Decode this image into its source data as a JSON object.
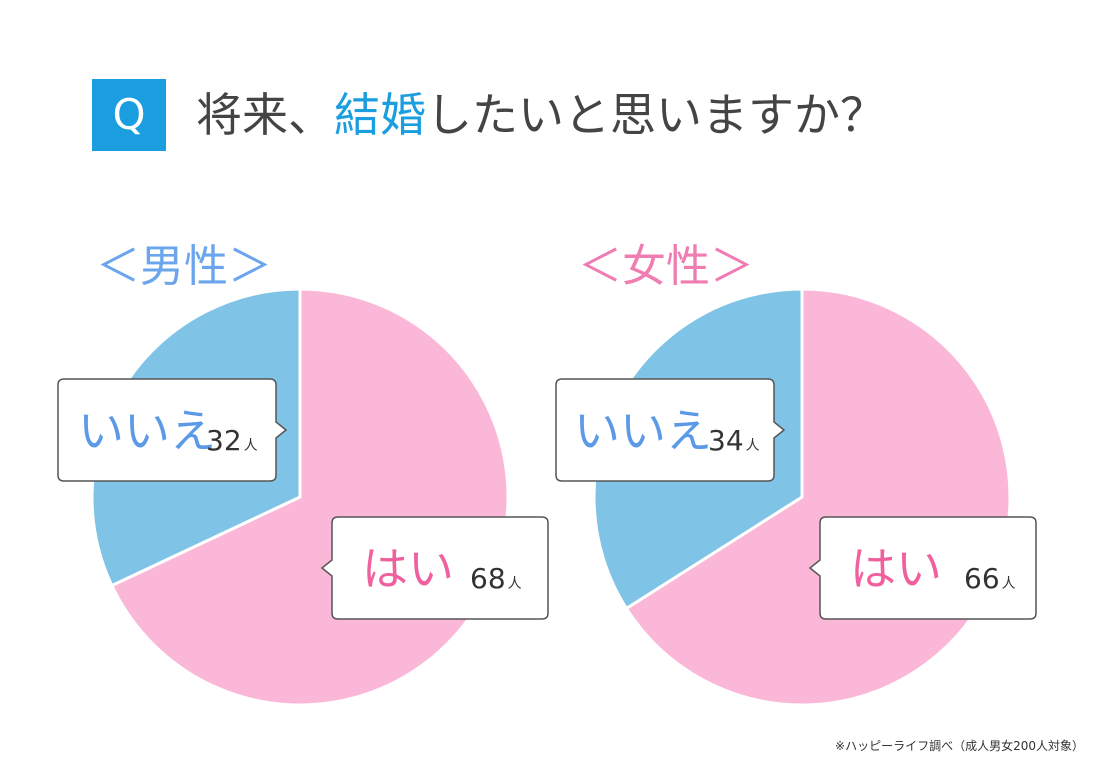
{
  "question": {
    "badge": "Q",
    "title_pre": "将来、",
    "title_highlight": "結婚",
    "title_post": "したいと思いますか？"
  },
  "colors": {
    "accent": "#1a9ee0",
    "yes": "#fbb7d7",
    "no": "#7fc4e6",
    "male_heading": "#6aa5ee",
    "female_heading": "#f07db1",
    "yes_text": "#f0609e",
    "no_text": "#5c9ae8",
    "bubble_border": "#555555"
  },
  "chart_data": [
    {
      "type": "pie",
      "title": "＜男性＞",
      "slices": [
        {
          "label": "はい",
          "value": 68,
          "unit": "人",
          "color": "#fbb7d7"
        },
        {
          "label": "いいえ",
          "value": 32,
          "unit": "人",
          "color": "#7fc4e6"
        }
      ]
    },
    {
      "type": "pie",
      "title": "＜女性＞",
      "slices": [
        {
          "label": "はい",
          "value": 66,
          "unit": "人",
          "color": "#fbb7d7"
        },
        {
          "label": "いいえ",
          "value": 34,
          "unit": "人",
          "color": "#7fc4e6"
        }
      ]
    }
  ],
  "footnote": "※ハッピーライフ調べ（成人男女200人対象）"
}
